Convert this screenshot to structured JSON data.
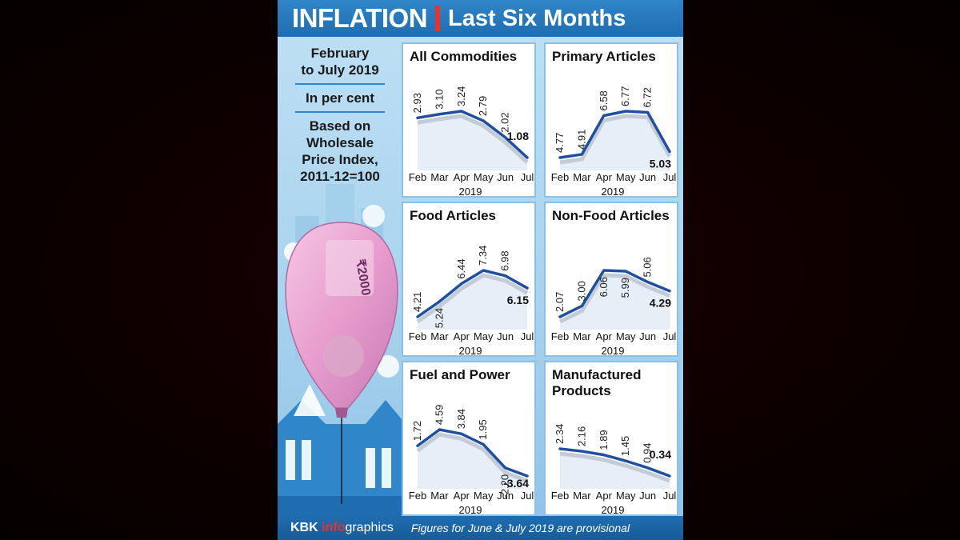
{
  "header": {
    "title": "INFLATION",
    "subtitle": "Last Six Months"
  },
  "info": {
    "period": [
      "February",
      "to July 2019"
    ],
    "unit": "In per cent",
    "basis": [
      "Based on",
      "Wholesale",
      "Price Index,",
      "2011-12=100"
    ]
  },
  "footer": {
    "credit_kbk": "KBK ",
    "credit_info": "info",
    "credit_graphics": "graphics",
    "note": "Figures for June & July 2019 are provisional"
  },
  "colors": {
    "header": "#1f6db0",
    "line": "#1f4fa0",
    "shadow": "#c3cbd6",
    "accent": "#e8322b"
  },
  "chart_data": [
    {
      "type": "line",
      "title": "All Commodities",
      "xlabel": "2019",
      "categories": [
        "Feb",
        "Mar",
        "Apr",
        "May",
        "Jun",
        "Jul"
      ],
      "values": [
        2.93,
        3.1,
        3.24,
        2.79,
        2.02,
        1.08
      ],
      "labels": [
        "2.93",
        "3.10",
        "3.24",
        "2.79",
        "2.02",
        "1.08"
      ]
    },
    {
      "type": "line",
      "title": "Primary Articles",
      "xlabel": "2019",
      "categories": [
        "Feb",
        "Mar",
        "Apr",
        "May",
        "Jun",
        "Jul"
      ],
      "values": [
        4.77,
        4.91,
        6.58,
        6.77,
        6.72,
        5.03
      ],
      "labels": [
        "4.77",
        "4.91",
        "6.58",
        "6.77",
        "6.72",
        "5.03"
      ]
    },
    {
      "type": "line",
      "title": "Food Articles",
      "xlabel": "2019",
      "categories": [
        "Feb",
        "Mar",
        "Apr",
        "May",
        "Jun",
        "Jul"
      ],
      "values": [
        4.21,
        5.24,
        6.44,
        7.34,
        6.98,
        6.15
      ],
      "labels": [
        "4.21",
        "5.24",
        "6.44",
        "7.34",
        "6.98",
        "6.15"
      ]
    },
    {
      "type": "line",
      "title": "Non-Food Articles",
      "xlabel": "2019",
      "categories": [
        "Feb",
        "Mar",
        "Apr",
        "May",
        "Jun",
        "Jul"
      ],
      "values": [
        2.07,
        3.0,
        6.06,
        5.99,
        5.06,
        4.29
      ],
      "labels": [
        "2.07",
        "3.00",
        "6.06",
        "5.99",
        "5.06",
        "4.29"
      ]
    },
    {
      "type": "line",
      "title": "Fuel and Power",
      "xlabel": "2019",
      "categories": [
        "Feb",
        "Mar",
        "Apr",
        "May",
        "Jun",
        "Jul"
      ],
      "values": [
        1.72,
        4.59,
        3.84,
        1.95,
        -2.2,
        -3.64
      ],
      "labels": [
        "1.72",
        "4.59",
        "3.84",
        "1.95",
        "-2.20",
        "-3.64"
      ]
    },
    {
      "type": "line",
      "title": "Manufactured Products",
      "xlabel": "2019",
      "categories": [
        "Feb",
        "Mar",
        "Apr",
        "May",
        "Jun",
        "Jul"
      ],
      "values": [
        2.34,
        2.16,
        1.89,
        1.45,
        0.94,
        0.34
      ],
      "labels": [
        "2.34",
        "2.16",
        "1.89",
        "1.45",
        "0.94",
        "0.34"
      ]
    }
  ]
}
